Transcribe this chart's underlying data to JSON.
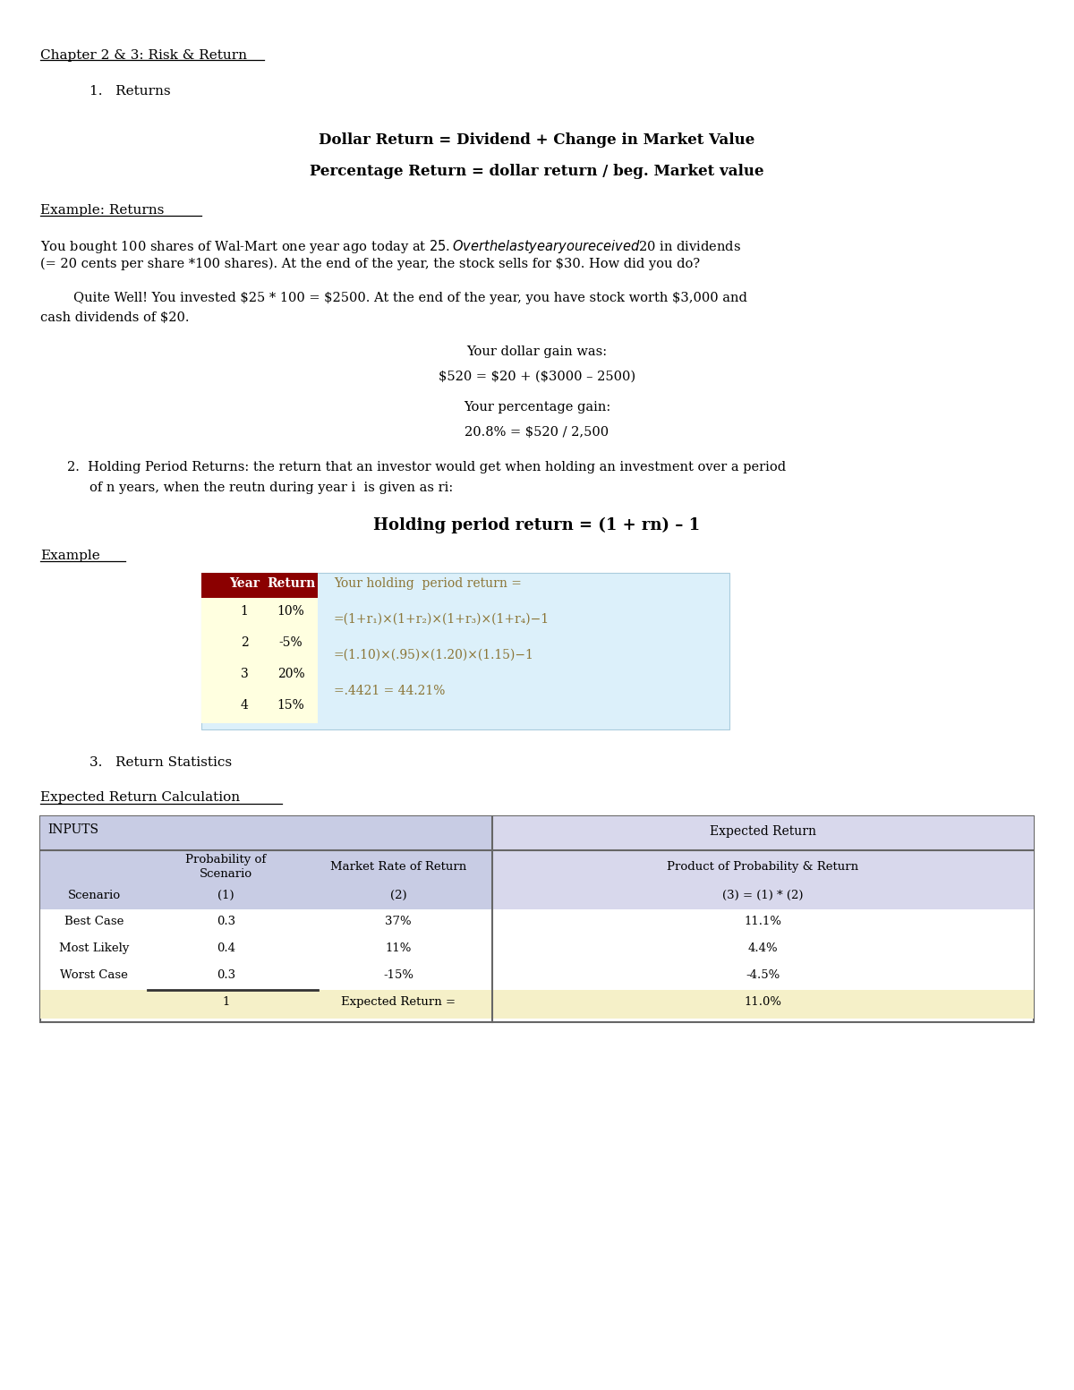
{
  "title": "Chapter 2 & 3: Risk & Return",
  "section1": "Returns",
  "formula1": "Dollar Return = Dividend + Change in Market Value",
  "formula2": "Percentage Return = dollar return / beg. Market value",
  "example_label": "Example: Returns",
  "example_text1a": "You bought 100 shares of Wal-Mart one year ago today at $25. Over the last year you received $20 in dividends",
  "example_text1b": "(= 20 cents per share *100 shares). At the end of the year, the stock sells for $30. How did you do?",
  "quite_well_a": "        Quite Well! You invested $25 * 100 = $2500. At the end of the year, you have stock worth $3,000 and",
  "quite_well_b": "cash dividends of $20.",
  "dollar_gain_label": "Your dollar gain was:",
  "dollar_gain_formula": "$520 = $20 + ($3000 – 2500)",
  "pct_gain_label": "Your percentage gain:",
  "pct_gain_formula": "20.8% = $520 / 2,500",
  "section2_line1": "Holding Period Returns: the return that an investor would get when holding an investment over a period",
  "section2_line2": "of n years, when the reutn during year i  is given as ri:",
  "holding_formula": "Holding period return = (1 + rn) – 1",
  "example2_label": "Example",
  "table_years": [
    "Year",
    "1",
    "2",
    "3",
    "4"
  ],
  "table_returns": [
    "Return",
    "10%",
    "-5%",
    "20%",
    "15%"
  ],
  "holding_text1": "Your holding  period return =",
  "holding_text2": "=(1+r₁)×(1+r₂)×(1+r₃)×(1+r₄)−1",
  "holding_text3": "=(1.10)×(.95)×(1.20)×(1.15)−1",
  "holding_text4": "=.4421 = 44.21%",
  "section3": "Return Statistics",
  "expected_return_label": "Expected Return Calculation",
  "table_inputs_header": "INPUTS",
  "table_expected_header": "Expected Return",
  "col_prob_hdr1": "Probability of",
  "col_prob_hdr2": "Scenario",
  "col_market_hdr": "Market Rate of Return",
  "col_product_hdr": "Product of Probability & Return",
  "col1_sub": "(1)",
  "col2_sub": "(2)",
  "col3_sub": "(3) = (1) * (2)",
  "scenario_lbl": "Scenario",
  "rows": [
    [
      "Best Case",
      "0.3",
      "37%",
      "11.1%"
    ],
    [
      "Most Likely",
      "0.4",
      "11%",
      "4.4%"
    ],
    [
      "Worst Case",
      "0.3",
      "-15%",
      "-4.5%"
    ]
  ],
  "total_row": [
    "1",
    "Expected Return =",
    "11.0%"
  ],
  "bg_color": "#ffffff",
  "table_header_dark": "#8B0000",
  "holding_table_bg": "#DCF0FA",
  "holding_table_yellow": "#FFFFE0",
  "formula_color": "#8B7536",
  "inputs_bg": "#C8CCE4",
  "expected_bg": "#D8D8EC",
  "total_row_bg": "#F5F0C8"
}
